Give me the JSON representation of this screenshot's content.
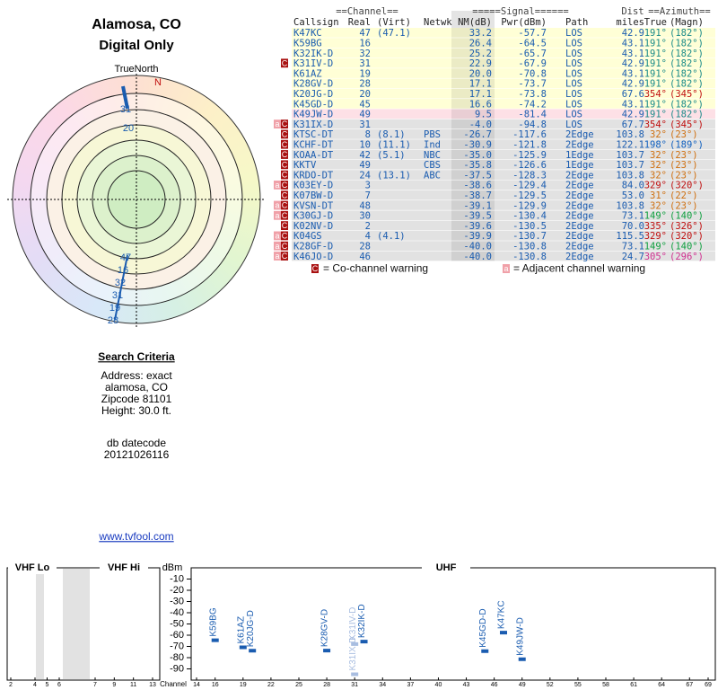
{
  "header": {
    "title": "Alamosa, CO",
    "subtitle": "Digital Only"
  },
  "polar": {
    "north": "TrueNorth",
    "n": "N",
    "labels": [
      "31",
      "20",
      "47",
      "16",
      "32",
      "31",
      "19",
      "28"
    ]
  },
  "table": {
    "group_headers": [
      "==Channel==",
      "=====Signal======",
      "Dist",
      "==Azimuth=="
    ],
    "headers": {
      "callsign": "Callsign",
      "real": "Real",
      "virt": "(Virt)",
      "netwk": "Netwk",
      "nm": "NM(dB)",
      "pwr": "Pwr(dBm)",
      "path": "Path",
      "dist": "miles",
      "true": "True",
      "magn": "(Magn)"
    },
    "rows": [
      {
        "callsign": "K47KC",
        "real": "47",
        "virt": "(47.1)",
        "nm": "33.2",
        "pwr": "-57.7",
        "path": "LOS",
        "dist": "42.9",
        "true": "191°",
        "magn": "(182°)",
        "bg": "#ffffd6",
        "az_color": "#1a8a8a"
      },
      {
        "callsign": "K59BG",
        "real": "16",
        "nm": "26.4",
        "pwr": "-64.5",
        "path": "LOS",
        "dist": "43.1",
        "true": "191°",
        "magn": "(182°)",
        "bg": "#ffffd6",
        "az_color": "#1a8a8a"
      },
      {
        "callsign": "K32IK-D",
        "real": "32",
        "nm": "25.2",
        "pwr": "-65.7",
        "path": "LOS",
        "dist": "43.1",
        "true": "191°",
        "magn": "(182°)",
        "bg": "#ffffd6",
        "az_color": "#1a8a8a"
      },
      {
        "callsign": "K31IV-D",
        "real": "31",
        "nm": "22.9",
        "pwr": "-67.9",
        "path": "LOS",
        "dist": "42.9",
        "true": "191°",
        "magn": "(182°)",
        "bg": "#ffffd6",
        "az_color": "#1a8a8a",
        "flags": [
          "C"
        ]
      },
      {
        "callsign": "K61AZ",
        "real": "19",
        "nm": "20.0",
        "pwr": "-70.8",
        "path": "LOS",
        "dist": "43.1",
        "true": "191°",
        "magn": "(182°)",
        "bg": "#ffffd6",
        "az_color": "#1a8a8a"
      },
      {
        "callsign": "K28GV-D",
        "real": "28",
        "nm": "17.1",
        "pwr": "-73.7",
        "path": "LOS",
        "dist": "42.9",
        "true": "191°",
        "magn": "(182°)",
        "bg": "#ffffd6",
        "az_color": "#1a8a8a"
      },
      {
        "callsign": "K20JG-D",
        "real": "20",
        "nm": "17.1",
        "pwr": "-73.8",
        "path": "LOS",
        "dist": "67.6",
        "true": "354°",
        "magn": "(345°)",
        "bg": "#ffffd6",
        "az_color": "#c01010"
      },
      {
        "callsign": "K45GD-D",
        "real": "45",
        "nm": "16.6",
        "pwr": "-74.2",
        "path": "LOS",
        "dist": "43.1",
        "true": "191°",
        "magn": "(182°)",
        "bg": "#ffffd6",
        "az_color": "#1a8a8a"
      },
      {
        "callsign": "K49JW-D",
        "real": "49",
        "nm": "9.5",
        "pwr": "-81.4",
        "path": "LOS",
        "dist": "42.9",
        "true": "191°",
        "magn": "(182°)",
        "bg": "#fde0e6",
        "az_color": "#1a8a8a"
      },
      {
        "callsign": "K31IX-D",
        "real": "31",
        "nm": "-4.0",
        "pwr": "-94.8",
        "path": "LOS",
        "dist": "67.7",
        "true": "354°",
        "magn": "(345°)",
        "bg": "#e2e2e2",
        "az_color": "#c01010",
        "flags": [
          "a",
          "C"
        ]
      },
      {
        "callsign": "KTSC-DT",
        "real": "8",
        "virt": "(8.1)",
        "netwk": "PBS",
        "nm": "-26.7",
        "pwr": "-117.6",
        "path": "2Edge",
        "dist": "103.8",
        "true": "32°",
        "magn": "(23°)",
        "bg": "#e2e2e2",
        "az_color": "#d07010",
        "flags": [
          "C"
        ]
      },
      {
        "callsign": "KCHF-DT",
        "real": "10",
        "virt": "(11.1)",
        "netwk": "Ind",
        "nm": "-30.9",
        "pwr": "-121.8",
        "path": "2Edge",
        "dist": "122.1",
        "true": "198°",
        "magn": "(189°)",
        "bg": "#e2e2e2",
        "az_color": "#1060c0",
        "flags": [
          "C"
        ]
      },
      {
        "callsign": "KOAA-DT",
        "real": "42",
        "virt": "(5.1)",
        "netwk": "NBC",
        "nm": "-35.0",
        "pwr": "-125.9",
        "path": "1Edge",
        "dist": "103.7",
        "true": "32°",
        "magn": "(23°)",
        "bg": "#e2e2e2",
        "az_color": "#d07010",
        "flags": [
          "C"
        ]
      },
      {
        "callsign": "KKTV",
        "real": "49",
        "netwk": "CBS",
        "nm": "-35.8",
        "pwr": "-126.6",
        "path": "1Edge",
        "dist": "103.7",
        "true": "32°",
        "magn": "(23°)",
        "bg": "#e2e2e2",
        "az_color": "#d07010",
        "flags": [
          "C"
        ]
      },
      {
        "callsign": "KRDO-DT",
        "real": "24",
        "virt": "(13.1)",
        "netwk": "ABC",
        "nm": "-37.5",
        "pwr": "-128.3",
        "path": "2Edge",
        "dist": "103.8",
        "true": "32°",
        "magn": "(23°)",
        "bg": "#e2e2e2",
        "az_color": "#d07010",
        "flags": [
          "C"
        ]
      },
      {
        "callsign": "K03EY-D",
        "real": "3",
        "nm": "-38.6",
        "pwr": "-129.4",
        "path": "2Edge",
        "dist": "84.0",
        "true": "329°",
        "magn": "(320°)",
        "bg": "#e2e2e2",
        "az_color": "#c01010",
        "flags": [
          "a",
          "C"
        ]
      },
      {
        "callsign": "K07BW-D",
        "real": "7",
        "nm": "-38.7",
        "pwr": "-129.5",
        "path": "2Edge",
        "dist": "53.0",
        "true": "31°",
        "magn": "(22°)",
        "bg": "#e2e2e2",
        "az_color": "#d07010",
        "flags": [
          "C"
        ]
      },
      {
        "callsign": "KVSN-DT",
        "real": "48",
        "nm": "-39.1",
        "pwr": "-129.9",
        "path": "2Edge",
        "dist": "103.8",
        "true": "32°",
        "magn": "(23°)",
        "bg": "#e2e2e2",
        "az_color": "#d07010",
        "flags": [
          "a",
          "C"
        ]
      },
      {
        "callsign": "K30GJ-D",
        "real": "30",
        "nm": "-39.5",
        "pwr": "-130.4",
        "path": "2Edge",
        "dist": "73.1",
        "true": "149°",
        "magn": "(140°)",
        "bg": "#e2e2e2",
        "az_color": "#10a040",
        "flags": [
          "a",
          "C"
        ]
      },
      {
        "callsign": "K02NV-D",
        "real": "2",
        "nm": "-39.6",
        "pwr": "-130.5",
        "path": "2Edge",
        "dist": "70.0",
        "true": "335°",
        "magn": "(326°)",
        "bg": "#e2e2e2",
        "az_color": "#c01010",
        "flags": [
          "C"
        ]
      },
      {
        "callsign": "K04GS",
        "real": "4",
        "virt": "(4.1)",
        "nm": "-39.9",
        "pwr": "-130.7",
        "path": "2Edge",
        "dist": "115.5",
        "true": "329°",
        "magn": "(320°)",
        "bg": "#e2e2e2",
        "az_color": "#c01010",
        "flags": [
          "a",
          "C"
        ]
      },
      {
        "callsign": "K28GF-D",
        "real": "28",
        "nm": "-40.0",
        "pwr": "-130.8",
        "path": "2Edge",
        "dist": "73.1",
        "true": "149°",
        "magn": "(140°)",
        "bg": "#e2e2e2",
        "az_color": "#10a040",
        "flags": [
          "a",
          "C"
        ]
      },
      {
        "callsign": "K46JO-D",
        "real": "46",
        "nm": "-40.0",
        "pwr": "-130.8",
        "path": "2Edge",
        "dist": "24.7",
        "true": "305°",
        "magn": "(296°)",
        "bg": "#e2e2e2",
        "az_color": "#d03090",
        "flags": [
          "a",
          "C"
        ]
      }
    ]
  },
  "legend": [
    {
      "icon": "C",
      "text": "= Co-channel warning"
    },
    {
      "icon": "a",
      "text": "= Adjacent channel warning"
    }
  ],
  "search": {
    "title": "Search Criteria",
    "lines": [
      "Address: exact",
      "alamosa, CO",
      "Zipcode 81101",
      "Height: 30.0 ft."
    ]
  },
  "datecode": {
    "label": "db datecode",
    "value": "20121026116"
  },
  "link": "www.tvfool.com",
  "chart_data": {
    "type": "scatter",
    "ylabel": "dBm",
    "xlabel": "Channel",
    "ylim": [
      -100,
      0
    ],
    "yticks": [
      -10,
      -20,
      -30,
      -40,
      -50,
      -60,
      -70,
      -80,
      -90
    ],
    "panels": [
      {
        "name": "VHF Lo",
        "xlim": [
          2,
          6
        ],
        "xticks": [
          2,
          4,
          5,
          6
        ]
      },
      {
        "name": "VHF Hi",
        "xlim": [
          7,
          13
        ],
        "xticks": [
          7,
          9,
          11,
          13
        ]
      },
      {
        "name": "UHF",
        "xlim": [
          14,
          69
        ],
        "xticks": [
          14,
          16,
          19,
          22,
          25,
          28,
          31,
          34,
          37,
          40,
          43,
          46,
          49,
          52,
          55,
          58,
          61,
          64,
          67,
          69
        ]
      }
    ],
    "labels": [
      "K59BG",
      "K61AZ",
      "K20JG-D",
      "K28GV-D",
      "K31IV-D",
      "K31IX-D",
      "K32IK-D",
      "K45GD-D",
      "K47KC",
      "K49JW-D"
    ],
    "x": [
      16,
      19,
      20,
      28,
      31,
      31,
      32,
      45,
      47,
      49
    ],
    "values": [
      -64.5,
      -70.8,
      -73.8,
      -73.7,
      -67.9,
      -94.8,
      -65.7,
      -74.2,
      -57.7,
      -81.4
    ],
    "colors": [
      "#1a5cb0",
      "#1a5cb0",
      "#1a5cb0",
      "#1a5cb0",
      "#a8bde0",
      "#a8bde0",
      "#1a5cb0",
      "#1a5cb0",
      "#1a5cb0",
      "#1a5cb0"
    ]
  }
}
